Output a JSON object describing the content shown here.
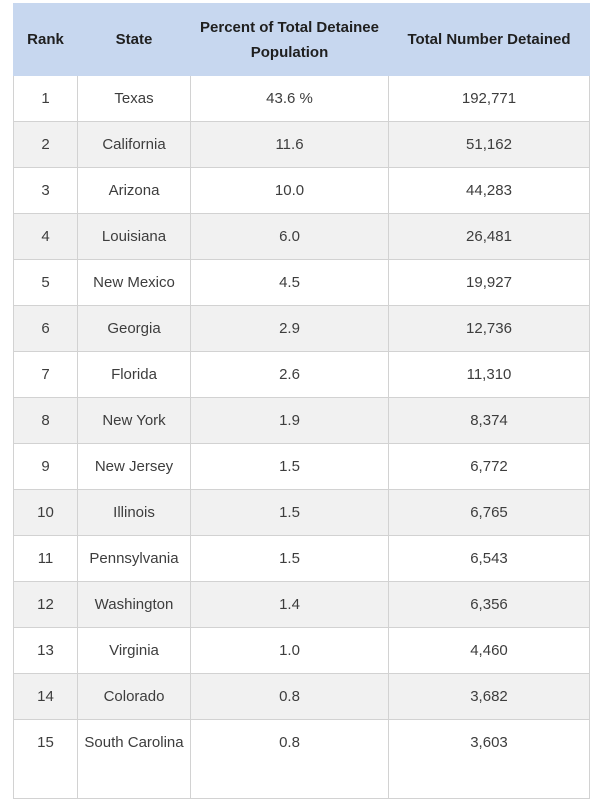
{
  "table": {
    "headers": {
      "rank": "Rank",
      "state": "State",
      "percent": "Percent of Total Detainee Population",
      "total": "Total Number Detained"
    },
    "rows": [
      {
        "rank": "1",
        "state": "Texas",
        "percent": "43.6 %",
        "total": "192,771"
      },
      {
        "rank": "2",
        "state": "California",
        "percent": "11.6",
        "total": "51,162"
      },
      {
        "rank": "3",
        "state": "Arizona",
        "percent": "10.0",
        "total": "44,283"
      },
      {
        "rank": "4",
        "state": "Louisiana",
        "percent": "6.0",
        "total": "26,481"
      },
      {
        "rank": "5",
        "state": "New Mexico",
        "percent": "4.5",
        "total": "19,927"
      },
      {
        "rank": "6",
        "state": "Georgia",
        "percent": "2.9",
        "total": "12,736"
      },
      {
        "rank": "7",
        "state": "Florida",
        "percent": "2.6",
        "total": "11,310"
      },
      {
        "rank": "8",
        "state": "New York",
        "percent": "1.9",
        "total": "8,374"
      },
      {
        "rank": "9",
        "state": "New Jersey",
        "percent": "1.5",
        "total": "6,772"
      },
      {
        "rank": "10",
        "state": "Illinois",
        "percent": "1.5",
        "total": "6,765"
      },
      {
        "rank": "11",
        "state": "Pennsylvania",
        "percent": "1.5",
        "total": "6,543"
      },
      {
        "rank": "12",
        "state": "Washington",
        "percent": "1.4",
        "total": "6,356"
      },
      {
        "rank": "13",
        "state": "Virginia",
        "percent": "1.0",
        "total": "4,460"
      },
      {
        "rank": "14",
        "state": "Colorado",
        "percent": "0.8",
        "total": "3,682"
      },
      {
        "rank": "15",
        "state": "South Carolina",
        "percent": "0.8",
        "total": "3,603"
      }
    ]
  },
  "colors": {
    "header_bg": "#c7d7ef",
    "row_alt_bg": "#f1f1f1",
    "border": "#d2d2d2"
  }
}
